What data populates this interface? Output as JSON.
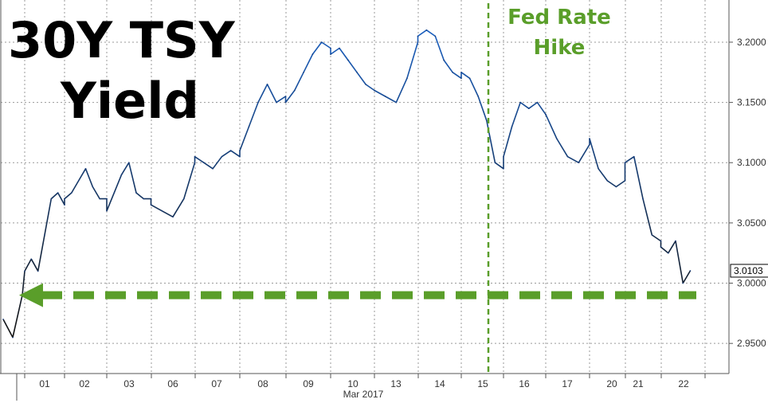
{
  "chart_data": {
    "type": "line",
    "title": "30Y TSY Yield",
    "title_lines": [
      "30Y TSY",
      "Yield"
    ],
    "annotation_lines": [
      "Fed Rate",
      "Hike"
    ],
    "xlabel": "Mar 2017",
    "ylabel": "",
    "ylim": [
      2.925,
      3.235
    ],
    "y_ticks": [
      2.95,
      3.0,
      3.05,
      3.1,
      3.15,
      3.2
    ],
    "y_tick_labels": [
      "2.9500",
      "3.0000",
      "3.0500",
      "3.1000",
      "3.1500",
      "3.2000"
    ],
    "x_ticks": [
      "01",
      "02",
      "03",
      "06",
      "07",
      "08",
      "09",
      "10",
      "13",
      "14",
      "15",
      "16",
      "17",
      "20",
      "21",
      "22"
    ],
    "grid": true,
    "last_value": 3.0103,
    "last_value_label": "3.0103",
    "reference_level": 2.99,
    "event_session": "15",
    "colors": {
      "line_top": "#1a5fbf",
      "line_bottom": "#111111",
      "annotation": "#5a9e2a",
      "grid": "#9a9a9a"
    },
    "series": [
      {
        "x": [
          "28",
          "28",
          "28",
          "01",
          "01",
          "01",
          "01",
          "01",
          "01",
          "01",
          "02",
          "02",
          "02",
          "02",
          "02",
          "02",
          "02",
          "03",
          "03",
          "03",
          "03",
          "03",
          "03",
          "03",
          "06",
          "06",
          "06",
          "06",
          "06",
          "07",
          "07",
          "07",
          "07",
          "07",
          "07",
          "08",
          "08",
          "08",
          "08",
          "08",
          "08",
          "09",
          "09",
          "09",
          "09",
          "09",
          "09",
          "10",
          "10",
          "10",
          "10",
          "10",
          "10",
          "13",
          "13",
          "13",
          "13",
          "13",
          "14",
          "14",
          "14",
          "14",
          "14",
          "14",
          "15",
          "15",
          "15",
          "15",
          "15",
          "15",
          "16",
          "16",
          "16",
          "16",
          "16",
          "16",
          "17",
          "17",
          "17",
          "17",
          "17",
          "20",
          "20",
          "20",
          "20",
          "20",
          "21",
          "21",
          "21",
          "21",
          "21",
          "22",
          "22",
          "22",
          "22",
          "22"
        ],
        "values": [
          2.97,
          2.955,
          2.99,
          3.01,
          3.02,
          3.01,
          3.04,
          3.07,
          3.075,
          3.065,
          3.07,
          3.075,
          3.085,
          3.095,
          3.08,
          3.07,
          3.07,
          3.06,
          3.075,
          3.09,
          3.1,
          3.075,
          3.07,
          3.07,
          3.065,
          3.06,
          3.055,
          3.07,
          3.1,
          3.105,
          3.1,
          3.095,
          3.105,
          3.11,
          3.105,
          3.11,
          3.13,
          3.15,
          3.165,
          3.15,
          3.155,
          3.15,
          3.16,
          3.175,
          3.19,
          3.2,
          3.195,
          3.19,
          3.195,
          3.185,
          3.175,
          3.165,
          3.16,
          3.16,
          3.155,
          3.15,
          3.17,
          3.2,
          3.205,
          3.21,
          3.205,
          3.185,
          3.175,
          3.17,
          3.175,
          3.17,
          3.155,
          3.135,
          3.1,
          3.095,
          3.105,
          3.13,
          3.15,
          3.145,
          3.15,
          3.14,
          3.14,
          3.12,
          3.105,
          3.1,
          3.115,
          3.12,
          3.095,
          3.085,
          3.08,
          3.085,
          3.1,
          3.105,
          3.07,
          3.04,
          3.035,
          3.03,
          3.025,
          3.035,
          3.0,
          3.0103
        ]
      }
    ]
  }
}
